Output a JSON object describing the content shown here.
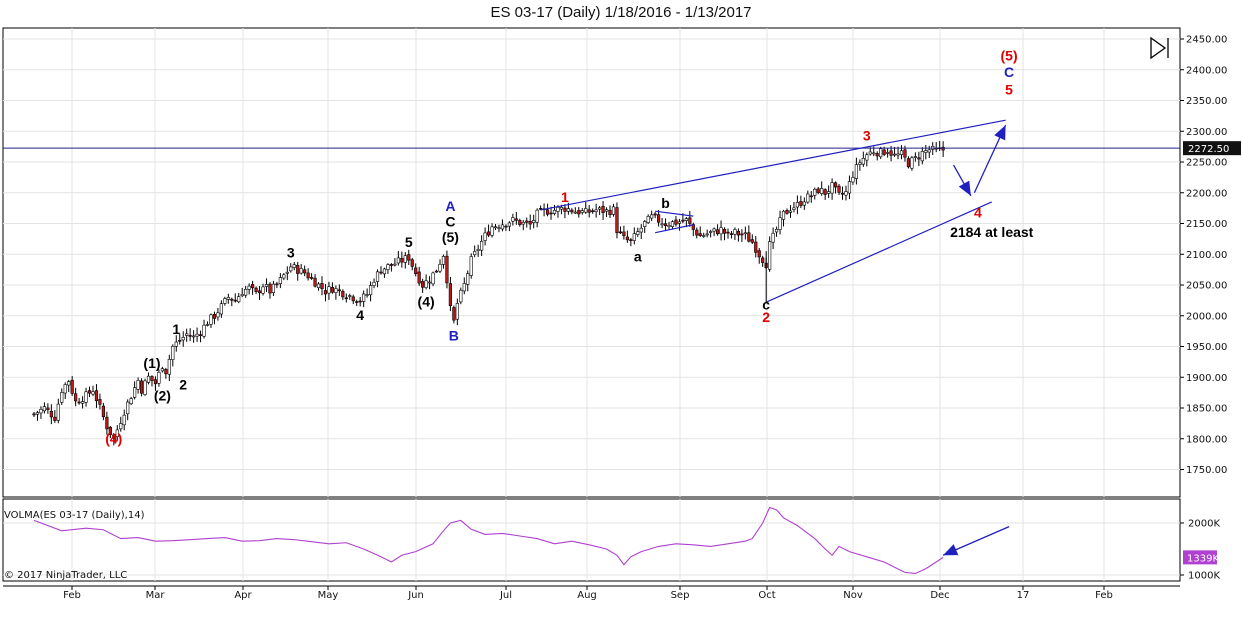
{
  "chart_data": [
    {
      "type": "candlestick",
      "title": "ES 03-17 (Daily)  1/18/2016 - 1/13/2017",
      "x_ticks": [
        "Feb",
        "Mar",
        "Apr",
        "May",
        "Jun",
        "Jul",
        "Aug",
        "Sep",
        "Oct",
        "Nov",
        "Dec",
        "17",
        "Feb"
      ],
      "y_ticks": [
        "2450.00",
        "2400.00",
        "2350.00",
        "2300.00",
        "2250.00",
        "2200.00",
        "2150.00",
        "2100.00",
        "2050.00",
        "2000.00",
        "1950.00",
        "1900.00",
        "1850.00",
        "1800.00",
        "1750.00"
      ],
      "ylim": [
        1720,
        2460
      ],
      "last_price": "2272.50",
      "horizontal_line": 2272.5,
      "close_path": [
        [
          0,
          1840
        ],
        [
          3,
          1850
        ],
        [
          6,
          1835
        ],
        [
          8,
          1880
        ],
        [
          10,
          1895
        ],
        [
          12,
          1860
        ],
        [
          15,
          1870
        ],
        [
          17,
          1880
        ],
        [
          19,
          1850
        ],
        [
          21,
          1820
        ],
        [
          23,
          1800
        ],
        [
          24,
          1815
        ],
        [
          26,
          1845
        ],
        [
          28,
          1870
        ],
        [
          30,
          1895
        ],
        [
          31,
          1880
        ],
        [
          33,
          1900
        ],
        [
          35,
          1890
        ],
        [
          37,
          1920
        ],
        [
          38,
          1910
        ],
        [
          40,
          1950
        ],
        [
          42,
          1960
        ],
        [
          44,
          1970
        ],
        [
          46,
          1965
        ],
        [
          48,
          1975
        ],
        [
          50,
          1990
        ],
        [
          52,
          2000
        ],
        [
          54,
          2015
        ],
        [
          56,
          2030
        ],
        [
          58,
          2025
        ],
        [
          60,
          2040
        ],
        [
          62,
          2045
        ],
        [
          64,
          2035
        ],
        [
          66,
          2050
        ],
        [
          68,
          2040
        ],
        [
          70,
          2050
        ],
        [
          72,
          2065
        ],
        [
          74,
          2080
        ],
        [
          76,
          2075
        ],
        [
          78,
          2070
        ],
        [
          80,
          2060
        ],
        [
          82,
          2050
        ],
        [
          84,
          2040
        ],
        [
          86,
          2045
        ],
        [
          88,
          2040
        ],
        [
          90,
          2035
        ],
        [
          92,
          2030
        ],
        [
          94,
          2025
        ],
        [
          96,
          2035
        ],
        [
          98,
          2060
        ],
        [
          100,
          2075
        ],
        [
          102,
          2080
        ],
        [
          104,
          2085
        ],
        [
          106,
          2090
        ],
        [
          108,
          2095
        ],
        [
          110,
          2070
        ],
        [
          112,
          2050
        ],
        [
          114,
          2060
        ],
        [
          116,
          2075
        ],
        [
          118,
          2100
        ],
        [
          119,
          2060
        ],
        [
          120,
          2010
        ],
        [
          121,
          1990
        ],
        [
          122,
          2020
        ],
        [
          124,
          2050
        ],
        [
          126,
          2090
        ],
        [
          128,
          2110
        ],
        [
          130,
          2130
        ],
        [
          132,
          2145
        ],
        [
          135,
          2150
        ],
        [
          138,
          2155
        ],
        [
          141,
          2150
        ],
        [
          143,
          2148
        ],
        [
          145,
          2165
        ],
        [
          147,
          2170
        ],
        [
          150,
          2172
        ],
        [
          153,
          2175
        ],
        [
          156,
          2170
        ],
        [
          159,
          2168
        ],
        [
          162,
          2172
        ],
        [
          165,
          2170
        ],
        [
          167,
          2172
        ],
        [
          168,
          2140
        ],
        [
          170,
          2125
        ],
        [
          172,
          2120
        ],
        [
          174,
          2135
        ],
        [
          176,
          2150
        ],
        [
          178,
          2160
        ],
        [
          180,
          2155
        ],
        [
          182,
          2150
        ],
        [
          185,
          2152
        ],
        [
          188,
          2155
        ],
        [
          190,
          2140
        ],
        [
          192,
          2130
        ],
        [
          195,
          2135
        ],
        [
          198,
          2140
        ],
        [
          200,
          2130
        ],
        [
          202,
          2135
        ],
        [
          205,
          2130
        ],
        [
          207,
          2120
        ],
        [
          209,
          2100
        ],
        [
          211,
          2085
        ],
        [
          212,
          2115
        ],
        [
          214,
          2140
        ],
        [
          216,
          2165
        ],
        [
          218,
          2175
        ],
        [
          220,
          2180
        ],
        [
          222,
          2190
        ],
        [
          224,
          2195
        ],
        [
          226,
          2205
        ],
        [
          228,
          2200
        ],
        [
          230,
          2210
        ],
        [
          232,
          2195
        ],
        [
          234,
          2200
        ],
        [
          236,
          2230
        ],
        [
          238,
          2250
        ],
        [
          240,
          2262
        ],
        [
          242,
          2268
        ],
        [
          244,
          2265
        ],
        [
          246,
          2270
        ],
        [
          248,
          2260
        ],
        [
          250,
          2262
        ],
        [
          252,
          2248
        ],
        [
          254,
          2255
        ],
        [
          256,
          2265
        ],
        [
          258,
          2270
        ],
        [
          260,
          2268
        ],
        [
          262,
          2270
        ]
      ],
      "annotations": [
        {
          "text": "(4)",
          "bar": 23,
          "price": 1792,
          "color": "#e00000"
        },
        {
          "text": "(1)",
          "bar": 34,
          "price": 1915,
          "color": "#000000"
        },
        {
          "text": "(2)",
          "bar": 37,
          "price": 1862,
          "color": "#000000"
        },
        {
          "text": "1",
          "bar": 41,
          "price": 1970,
          "color": "#000000"
        },
        {
          "text": "2",
          "bar": 43,
          "price": 1880,
          "color": "#000000"
        },
        {
          "text": "3",
          "bar": 74,
          "price": 2095,
          "color": "#000000"
        },
        {
          "text": "4",
          "bar": 94,
          "price": 1993,
          "color": "#000000"
        },
        {
          "text": "5",
          "bar": 108,
          "price": 2112,
          "color": "#000000"
        },
        {
          "text": "(4)",
          "bar": 113,
          "price": 2015,
          "color": "#000000"
        },
        {
          "text": "(5)",
          "bar": 120,
          "price": 2120,
          "color": "#000000"
        },
        {
          "text": "C",
          "bar": 120,
          "price": 2145,
          "color": "#000000"
        },
        {
          "text": "A",
          "bar": 120,
          "price": 2170,
          "color": "#2020c0"
        },
        {
          "text": "B",
          "bar": 121,
          "price": 1960,
          "color": "#2020c0"
        },
        {
          "text": "1",
          "bar": 153,
          "price": 2185,
          "color": "#e00000"
        },
        {
          "text": "a",
          "bar": 174,
          "price": 2088,
          "color": "#000000"
        },
        {
          "text": "b",
          "bar": 182,
          "price": 2175,
          "color": "#000000"
        },
        {
          "text": "c",
          "bar": 211,
          "price": 2010,
          "color": "#000000"
        },
        {
          "text": "2",
          "bar": 211,
          "price": 1990,
          "color": "#e00000"
        },
        {
          "text": "3",
          "bar": 240,
          "price": 2285,
          "color": "#e00000"
        },
        {
          "text": "4",
          "bar": 272,
          "price": 2160,
          "color": "#e00000"
        },
        {
          "text": "2184 at least",
          "bar": 276,
          "price": 2128,
          "color": "#000000"
        },
        {
          "text": "(5)",
          "bar": 281,
          "price": 2415,
          "color": "#e00000"
        },
        {
          "text": "C",
          "bar": 281,
          "price": 2388,
          "color": "#2020c0"
        },
        {
          "text": "5",
          "bar": 281,
          "price": 2360,
          "color": "#e00000"
        }
      ],
      "trendlines": [
        {
          "from": [
            146,
            2172
          ],
          "to": [
            280,
            2318
          ],
          "color": "#2020c0"
        },
        {
          "from": [
            211,
            2022
          ],
          "to": [
            276,
            2185
          ],
          "color": "#2020c0"
        },
        {
          "from": [
            179,
            2170
          ],
          "to": [
            190,
            2162
          ],
          "color": "#2020c0"
        },
        {
          "from": [
            179,
            2135
          ],
          "to": [
            190,
            2148
          ],
          "color": "#2020c0"
        }
      ],
      "arrows": [
        {
          "from": [
            265,
            2245
          ],
          "to": [
            270,
            2195
          ],
          "color": "#2020c0"
        },
        {
          "from": [
            271,
            2200
          ],
          "to": [
            280,
            2310
          ],
          "color": "#2020c0"
        }
      ]
    },
    {
      "type": "line",
      "title": "VOLMA(ES 03-17 (Daily),14)",
      "y_ticks": [
        "2000K",
        "1000K"
      ],
      "ylim": [
        950,
        2300
      ],
      "last_value": "1339K",
      "color": "#b040d0",
      "volume_path": [
        [
          0,
          2050
        ],
        [
          8,
          1850
        ],
        [
          15,
          1900
        ],
        [
          20,
          1870
        ],
        [
          25,
          1700
        ],
        [
          30,
          1720
        ],
        [
          35,
          1650
        ],
        [
          40,
          1660
        ],
        [
          45,
          1680
        ],
        [
          50,
          1700
        ],
        [
          55,
          1720
        ],
        [
          60,
          1650
        ],
        [
          65,
          1660
        ],
        [
          70,
          1700
        ],
        [
          75,
          1680
        ],
        [
          80,
          1640
        ],
        [
          85,
          1600
        ],
        [
          90,
          1620
        ],
        [
          95,
          1500
        ],
        [
          100,
          1350
        ],
        [
          103,
          1250
        ],
        [
          106,
          1380
        ],
        [
          110,
          1450
        ],
        [
          115,
          1600
        ],
        [
          118,
          1850
        ],
        [
          120,
          2000
        ],
        [
          123,
          2050
        ],
        [
          126,
          1880
        ],
        [
          130,
          1780
        ],
        [
          135,
          1800
        ],
        [
          140,
          1750
        ],
        [
          145,
          1700
        ],
        [
          150,
          1600
        ],
        [
          155,
          1650
        ],
        [
          160,
          1580
        ],
        [
          165,
          1500
        ],
        [
          168,
          1380
        ],
        [
          170,
          1200
        ],
        [
          172,
          1350
        ],
        [
          175,
          1450
        ],
        [
          180,
          1550
        ],
        [
          185,
          1600
        ],
        [
          190,
          1580
        ],
        [
          195,
          1550
        ],
        [
          200,
          1600
        ],
        [
          205,
          1650
        ],
        [
          207,
          1700
        ],
        [
          210,
          2000
        ],
        [
          212,
          2300
        ],
        [
          214,
          2250
        ],
        [
          216,
          2100
        ],
        [
          220,
          1950
        ],
        [
          225,
          1700
        ],
        [
          228,
          1500
        ],
        [
          230,
          1380
        ],
        [
          232,
          1550
        ],
        [
          235,
          1450
        ],
        [
          240,
          1350
        ],
        [
          245,
          1250
        ],
        [
          248,
          1150
        ],
        [
          251,
          1050
        ],
        [
          254,
          1030
        ],
        [
          257,
          1120
        ],
        [
          260,
          1250
        ],
        [
          262,
          1339
        ]
      ],
      "arrows": [
        {
          "from": [
            281,
            1930
          ],
          "to": [
            262,
            1380
          ],
          "color": "#2020c0"
        }
      ]
    }
  ],
  "copyright": "© 2017 NinjaTrader, LLC"
}
